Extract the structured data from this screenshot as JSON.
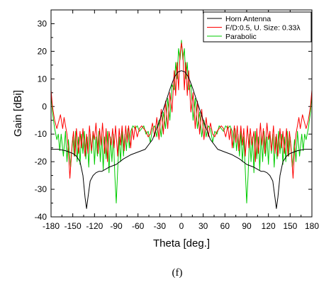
{
  "chart_data": {
    "type": "line",
    "caption": "(f)",
    "xlabel": "Theta [deg.]",
    "ylabel": "Gain [dBi]",
    "xlim": [
      -180,
      180
    ],
    "ylim": [
      -40,
      35
    ],
    "xticks": [
      -180,
      -150,
      -120,
      -90,
      -60,
      -30,
      0,
      30,
      60,
      90,
      120,
      150,
      180
    ],
    "yticks": [
      -40,
      -30,
      -20,
      -10,
      0,
      10,
      20,
      30
    ],
    "grid": false,
    "legend_position": "top-right",
    "series": [
      {
        "name": "Horn Antenna",
        "color": "#000000",
        "x": [
          -180,
          -170,
          -160,
          -150,
          -145,
          -140,
          -136,
          -133,
          -131,
          -129,
          -126,
          -122,
          -118,
          -114,
          -110,
          -100,
          -90,
          -80,
          -70,
          -60,
          -50,
          -40,
          -30,
          -25,
          -20,
          -15,
          -10,
          -5,
          0,
          5,
          10,
          15,
          20,
          25,
          30,
          40,
          50,
          60,
          70,
          80,
          90,
          100,
          110,
          114,
          118,
          122,
          126,
          129,
          131,
          133,
          136,
          140,
          145,
          150,
          160,
          170,
          180
        ],
        "y": [
          -15.5,
          -15.5,
          -16,
          -17,
          -18,
          -20,
          -25,
          -33,
          -37,
          -33,
          -27,
          -25,
          -24,
          -23.5,
          -23.5,
          -22,
          -21,
          -19,
          -17.5,
          -16.5,
          -15.5,
          -12,
          -5,
          -1,
          3,
          7,
          10.5,
          12.5,
          13,
          12.5,
          10.5,
          7,
          3,
          -1,
          -5,
          -12,
          -15.5,
          -16.5,
          -17.5,
          -19,
          -21,
          -22,
          -23.5,
          -23.5,
          -24,
          -25,
          -27,
          -33,
          -37,
          -33,
          -25,
          -20,
          -18,
          -17,
          -16,
          -15.5,
          -15.5
        ]
      },
      {
        "name": "F/D:0.5, U. Size: 0.33λ",
        "color": "#ff0000",
        "x": [
          -180,
          -178,
          -175,
          -172,
          -170,
          -167,
          -164,
          -162,
          -160,
          -158,
          -156,
          -154,
          -151,
          -149,
          -147,
          -145,
          -142,
          -140,
          -138,
          -136,
          -133,
          -131,
          -129,
          -127,
          -124,
          -122,
          -120,
          -118,
          -115,
          -113,
          -111,
          -109,
          -106,
          -104,
          -102,
          -100,
          -97,
          -95,
          -93,
          -91,
          -88,
          -86,
          -84,
          -82,
          -79,
          -77,
          -75,
          -73,
          -70,
          -68,
          -66,
          -64,
          -61,
          -58,
          -55,
          -52,
          -49,
          -46,
          -43,
          -40,
          -37,
          -34,
          -31,
          -28,
          -25,
          -22,
          -19,
          -16,
          -13,
          -10,
          -8,
          -6,
          -4,
          -2,
          0,
          2,
          4,
          6,
          8,
          10,
          13,
          16,
          19,
          22,
          25,
          28,
          31,
          34,
          37,
          40,
          43,
          46,
          49,
          52,
          55,
          58,
          61,
          64,
          66,
          68,
          70,
          73,
          75,
          77,
          79,
          82,
          84,
          86,
          88,
          91,
          93,
          95,
          97,
          100,
          102,
          104,
          106,
          109,
          111,
          113,
          115,
          118,
          120,
          122,
          124,
          127,
          129,
          131,
          133,
          136,
          138,
          140,
          142,
          145,
          147,
          149,
          151,
          154,
          156,
          158,
          160,
          162,
          164,
          167,
          170,
          172,
          175,
          178,
          180
        ],
        "y": [
          6,
          0,
          -5,
          -8,
          -6,
          -3,
          -8,
          -4,
          -7,
          -10,
          -16,
          -26,
          -14,
          -9,
          -18,
          -8,
          -17,
          -9,
          -15,
          -8,
          -18,
          -10,
          -17,
          -7,
          -16,
          -9,
          -12,
          -6,
          -17,
          -8,
          -14,
          -6,
          -17,
          -8,
          -20,
          -9,
          -14,
          -8,
          -15,
          -7,
          -18,
          -8,
          -14,
          -7,
          -16,
          -7,
          -13,
          -7,
          -15,
          -8,
          -12,
          -7,
          -11,
          -8,
          -7,
          -8,
          -9,
          -11,
          -10,
          -6,
          -11,
          -4,
          -12,
          -1,
          -10,
          2,
          -8,
          5,
          -2,
          13,
          4,
          16,
          6,
          19,
          23,
          19,
          6,
          16,
          4,
          13,
          -2,
          5,
          -8,
          2,
          -10,
          -1,
          -12,
          -4,
          -11,
          -6,
          -10,
          -11,
          -9,
          -8,
          -7,
          -8,
          -11,
          -7,
          -12,
          -8,
          -15,
          -7,
          -13,
          -7,
          -16,
          -7,
          -14,
          -8,
          -18,
          -7,
          -15,
          -8,
          -14,
          -9,
          -20,
          -8,
          -17,
          -6,
          -14,
          -8,
          -17,
          -6,
          -12,
          -9,
          -16,
          -7,
          -17,
          -10,
          -18,
          -8,
          -15,
          -9,
          -17,
          -8,
          -18,
          -9,
          -14,
          -26,
          -16,
          -10,
          -7,
          -4,
          -8,
          -3,
          -6,
          -8,
          -5,
          0,
          6
        ]
      },
      {
        "name": "Parabolic",
        "color": "#00cc00",
        "x": [
          -180,
          -178,
          -175,
          -172,
          -170,
          -168,
          -166,
          -163,
          -160,
          -158,
          -156,
          -153,
          -150,
          -148,
          -146,
          -144,
          -142,
          -140,
          -138,
          -136,
          -134,
          -132,
          -130,
          -128,
          -126,
          -124,
          -122,
          -120,
          -118,
          -116,
          -114,
          -112,
          -110,
          -108,
          -106,
          -104,
          -102,
          -100,
          -98,
          -96,
          -94,
          -92,
          -90,
          -88,
          -86,
          -84,
          -82,
          -80,
          -78,
          -76,
          -74,
          -72,
          -70,
          -67,
          -64,
          -61,
          -58,
          -55,
          -52,
          -49,
          -46,
          -43,
          -40,
          -37,
          -34,
          -31,
          -28,
          -25,
          -22,
          -19,
          -16,
          -13,
          -10,
          -8,
          -6,
          -4,
          -2,
          0,
          2,
          4,
          6,
          8,
          10,
          13,
          16,
          19,
          22,
          25,
          28,
          31,
          34,
          37,
          40,
          43,
          46,
          49,
          52,
          55,
          58,
          61,
          64,
          67,
          70,
          72,
          74,
          76,
          78,
          80,
          82,
          84,
          86,
          88,
          90,
          92,
          94,
          96,
          98,
          100,
          102,
          104,
          106,
          108,
          110,
          112,
          114,
          116,
          118,
          120,
          122,
          124,
          126,
          128,
          130,
          132,
          134,
          136,
          138,
          140,
          142,
          144,
          146,
          148,
          150,
          153,
          156,
          158,
          160,
          163,
          166,
          168,
          170,
          172,
          175,
          178,
          180
        ],
        "y": [
          5,
          -2,
          -8,
          -12,
          -10,
          -16,
          -10,
          -18,
          -9,
          -20,
          -12,
          -22,
          -11,
          -18,
          -9,
          -20,
          -11,
          -21,
          -10,
          -17,
          -9,
          -19,
          -11,
          -22,
          -10,
          -17,
          -9,
          -21,
          -11,
          -18,
          -9,
          -20,
          -10,
          -23,
          -11,
          -19,
          -9,
          -24,
          -11,
          -20,
          -10,
          -25,
          -35,
          -23,
          -11,
          -20,
          -9,
          -18,
          -10,
          -16,
          -8,
          -15,
          -9,
          -7,
          -8,
          -7,
          -9,
          -8,
          -7,
          -10,
          -9,
          -13,
          -8,
          -7,
          -11,
          -5,
          -11,
          -2,
          -8,
          3,
          -5,
          8,
          6,
          16,
          10,
          21,
          17,
          24,
          17,
          21,
          10,
          16,
          6,
          8,
          -5,
          3,
          -8,
          -2,
          -11,
          -5,
          -11,
          -7,
          -8,
          -13,
          -9,
          -10,
          -7,
          -8,
          -9,
          -7,
          -8,
          -7,
          -9,
          -15,
          -8,
          -16,
          -10,
          -18,
          -9,
          -20,
          -11,
          -23,
          -35,
          -25,
          -10,
          -20,
          -11,
          -24,
          -9,
          -19,
          -11,
          -23,
          -10,
          -20,
          -9,
          -18,
          -11,
          -21,
          -9,
          -17,
          -10,
          -22,
          -11,
          -19,
          -9,
          -17,
          -10,
          -21,
          -11,
          -20,
          -9,
          -18,
          -11,
          -22,
          -12,
          -20,
          -9,
          -18,
          -10,
          -16,
          -10,
          -12,
          -8,
          -2,
          5
        ]
      }
    ]
  }
}
